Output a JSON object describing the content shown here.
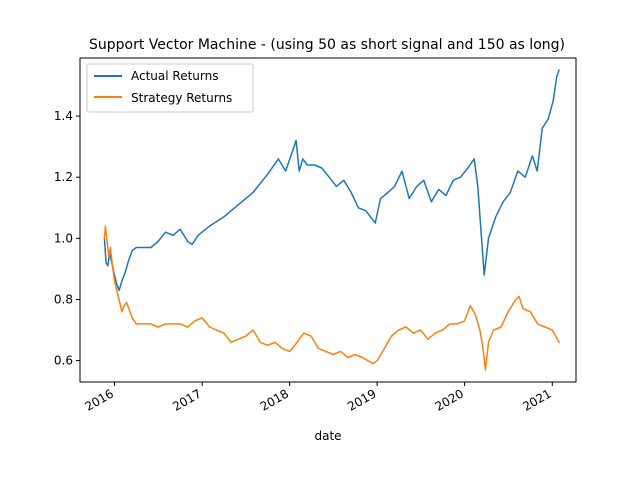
{
  "chart_data": {
    "type": "line",
    "title": "Support Vector Machine -  (using 50 as short signal and 150 as long)",
    "xlabel": "date",
    "ylabel": "",
    "x_ticks": [
      "2016",
      "2017",
      "2018",
      "2019",
      "2020",
      "2021"
    ],
    "y_ticks": [
      "0.6",
      "0.8",
      "1.0",
      "1.2",
      "1.4"
    ],
    "xlim": [
      "2015-08-10",
      "2021-04-10"
    ],
    "ylim": [
      0.53,
      1.59
    ],
    "grid": false,
    "legend_position": "top-left",
    "series": [
      {
        "name": "Actual Returns",
        "color": "#1f77b4",
        "points": [
          [
            "2015-11-20",
            1.0
          ],
          [
            "2015-11-27",
            0.92
          ],
          [
            "2015-12-04",
            0.91
          ],
          [
            "2015-12-11",
            0.95
          ],
          [
            "2015-12-18",
            0.93
          ],
          [
            "2016-01-01",
            0.88
          ],
          [
            "2016-01-10",
            0.85
          ],
          [
            "2016-01-20",
            0.83
          ],
          [
            "2016-02-01",
            0.86
          ],
          [
            "2016-02-15",
            0.89
          ],
          [
            "2016-03-01",
            0.93
          ],
          [
            "2016-03-15",
            0.96
          ],
          [
            "2016-04-01",
            0.97
          ],
          [
            "2016-06-01",
            0.97
          ],
          [
            "2016-07-01",
            0.99
          ],
          [
            "2016-08-01",
            1.02
          ],
          [
            "2016-09-01",
            1.01
          ],
          [
            "2016-10-01",
            1.03
          ],
          [
            "2016-11-01",
            0.99
          ],
          [
            "2016-11-20",
            0.98
          ],
          [
            "2016-12-15",
            1.01
          ],
          [
            "2017-02-01",
            1.04
          ],
          [
            "2017-04-01",
            1.07
          ],
          [
            "2017-06-01",
            1.11
          ],
          [
            "2017-08-01",
            1.15
          ],
          [
            "2017-10-01",
            1.21
          ],
          [
            "2017-11-15",
            1.26
          ],
          [
            "2017-12-15",
            1.22
          ],
          [
            "2018-01-15",
            1.29
          ],
          [
            "2018-01-28",
            1.32
          ],
          [
            "2018-02-10",
            1.22
          ],
          [
            "2018-02-25",
            1.26
          ],
          [
            "2018-03-15",
            1.24
          ],
          [
            "2018-04-15",
            1.24
          ],
          [
            "2018-05-15",
            1.23
          ],
          [
            "2018-06-15",
            1.2
          ],
          [
            "2018-07-15",
            1.17
          ],
          [
            "2018-08-15",
            1.19
          ],
          [
            "2018-09-15",
            1.15
          ],
          [
            "2018-10-15",
            1.1
          ],
          [
            "2018-11-15",
            1.09
          ],
          [
            "2018-12-24",
            1.05
          ],
          [
            "2019-01-15",
            1.13
          ],
          [
            "2019-02-15",
            1.15
          ],
          [
            "2019-03-15",
            1.17
          ],
          [
            "2019-04-15",
            1.22
          ],
          [
            "2019-05-15",
            1.13
          ],
          [
            "2019-06-15",
            1.17
          ],
          [
            "2019-07-15",
            1.19
          ],
          [
            "2019-08-15",
            1.12
          ],
          [
            "2019-09-15",
            1.16
          ],
          [
            "2019-10-15",
            1.14
          ],
          [
            "2019-11-15",
            1.19
          ],
          [
            "2019-12-15",
            1.2
          ],
          [
            "2020-01-15",
            1.23
          ],
          [
            "2020-02-10",
            1.26
          ],
          [
            "2020-02-25",
            1.17
          ],
          [
            "2020-03-10",
            1.02
          ],
          [
            "2020-03-23",
            0.88
          ],
          [
            "2020-04-10",
            1.0
          ],
          [
            "2020-05-10",
            1.07
          ],
          [
            "2020-06-10",
            1.12
          ],
          [
            "2020-07-10",
            1.15
          ],
          [
            "2020-08-10",
            1.22
          ],
          [
            "2020-09-10",
            1.2
          ],
          [
            "2020-10-10",
            1.27
          ],
          [
            "2020-10-30",
            1.22
          ],
          [
            "2020-11-20",
            1.36
          ],
          [
            "2020-12-15",
            1.39
          ],
          [
            "2021-01-05",
            1.45
          ],
          [
            "2021-01-20",
            1.53
          ],
          [
            "2021-01-29",
            1.55
          ]
        ]
      },
      {
        "name": "Strategy Returns",
        "color": "#ff7f0e",
        "points": [
          [
            "2015-11-20",
            1.0
          ],
          [
            "2015-11-24",
            1.04
          ],
          [
            "2015-12-01",
            0.99
          ],
          [
            "2015-12-08",
            0.94
          ],
          [
            "2015-12-15",
            0.97
          ],
          [
            "2015-12-22",
            0.92
          ],
          [
            "2016-01-01",
            0.86
          ],
          [
            "2016-01-10",
            0.83
          ],
          [
            "2016-01-20",
            0.8
          ],
          [
            "2016-02-01",
            0.76
          ],
          [
            "2016-02-10",
            0.78
          ],
          [
            "2016-02-20",
            0.79
          ],
          [
            "2016-03-01",
            0.77
          ],
          [
            "2016-03-15",
            0.74
          ],
          [
            "2016-04-01",
            0.72
          ],
          [
            "2016-06-01",
            0.72
          ],
          [
            "2016-07-01",
            0.71
          ],
          [
            "2016-08-01",
            0.72
          ],
          [
            "2016-09-01",
            0.72
          ],
          [
            "2016-10-01",
            0.72
          ],
          [
            "2016-11-01",
            0.71
          ],
          [
            "2016-12-01",
            0.73
          ],
          [
            "2017-01-01",
            0.74
          ],
          [
            "2017-02-01",
            0.71
          ],
          [
            "2017-03-01",
            0.7
          ],
          [
            "2017-04-01",
            0.69
          ],
          [
            "2017-05-01",
            0.66
          ],
          [
            "2017-06-01",
            0.67
          ],
          [
            "2017-07-01",
            0.68
          ],
          [
            "2017-08-01",
            0.7
          ],
          [
            "2017-09-01",
            0.66
          ],
          [
            "2017-10-01",
            0.65
          ],
          [
            "2017-11-01",
            0.66
          ],
          [
            "2017-12-01",
            0.64
          ],
          [
            "2018-01-01",
            0.63
          ],
          [
            "2018-02-01",
            0.66
          ],
          [
            "2018-03-01",
            0.69
          ],
          [
            "2018-04-01",
            0.68
          ],
          [
            "2018-05-01",
            0.64
          ],
          [
            "2018-06-01",
            0.63
          ],
          [
            "2018-07-01",
            0.62
          ],
          [
            "2018-08-01",
            0.63
          ],
          [
            "2018-09-01",
            0.61
          ],
          [
            "2018-10-01",
            0.62
          ],
          [
            "2018-11-01",
            0.61
          ],
          [
            "2018-12-15",
            0.59
          ],
          [
            "2019-01-01",
            0.6
          ],
          [
            "2019-02-01",
            0.64
          ],
          [
            "2019-03-01",
            0.68
          ],
          [
            "2019-04-01",
            0.7
          ],
          [
            "2019-05-01",
            0.71
          ],
          [
            "2019-06-01",
            0.69
          ],
          [
            "2019-07-01",
            0.7
          ],
          [
            "2019-08-01",
            0.67
          ],
          [
            "2019-09-01",
            0.69
          ],
          [
            "2019-10-01",
            0.7
          ],
          [
            "2019-11-01",
            0.72
          ],
          [
            "2019-12-01",
            0.72
          ],
          [
            "2020-01-01",
            0.73
          ],
          [
            "2020-01-25",
            0.78
          ],
          [
            "2020-02-15",
            0.75
          ],
          [
            "2020-03-05",
            0.7
          ],
          [
            "2020-03-18",
            0.64
          ],
          [
            "2020-03-28",
            0.57
          ],
          [
            "2020-04-10",
            0.66
          ],
          [
            "2020-05-01",
            0.7
          ],
          [
            "2020-06-01",
            0.71
          ],
          [
            "2020-07-01",
            0.76
          ],
          [
            "2020-08-01",
            0.8
          ],
          [
            "2020-08-15",
            0.81
          ],
          [
            "2020-09-01",
            0.77
          ],
          [
            "2020-10-01",
            0.76
          ],
          [
            "2020-11-01",
            0.72
          ],
          [
            "2020-12-01",
            0.71
          ],
          [
            "2021-01-01",
            0.7
          ],
          [
            "2021-01-15",
            0.68
          ],
          [
            "2021-01-29",
            0.66
          ]
        ]
      }
    ]
  }
}
